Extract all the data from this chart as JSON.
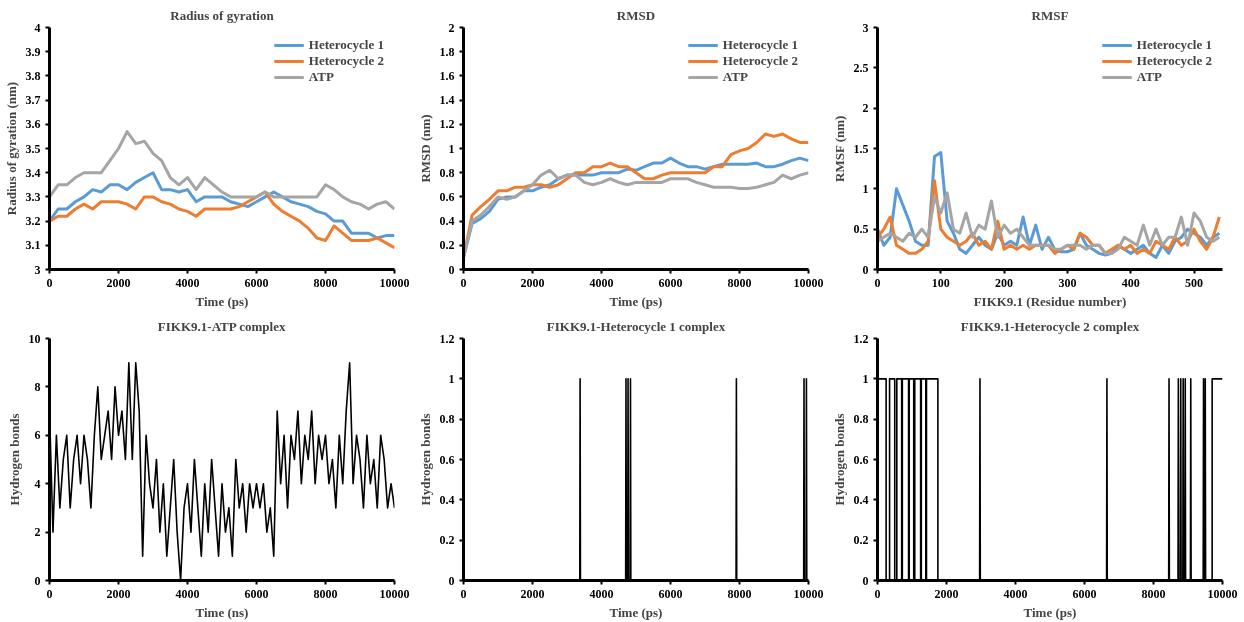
{
  "chart_data": [
    {
      "type": "line",
      "title": "Radius of gyration",
      "xlabel": "Time (ps)",
      "ylabel": "Radius of gyration (nm)",
      "legend": "top right",
      "xlim": [
        0,
        10000
      ],
      "ylim": [
        3,
        4
      ],
      "xticks": [
        0,
        2000,
        4000,
        6000,
        8000,
        10000
      ],
      "yticks": [
        3,
        3.1,
        3.2,
        3.3,
        3.4,
        3.5,
        3.6,
        3.7,
        3.8,
        3.9,
        4
      ],
      "x": [
        0,
        250,
        500,
        750,
        1000,
        1250,
        1500,
        1750,
        2000,
        2250,
        2500,
        2750,
        3000,
        3250,
        3500,
        3750,
        4000,
        4250,
        4500,
        4750,
        5000,
        5250,
        5500,
        5750,
        6000,
        6250,
        6500,
        6750,
        7000,
        7250,
        7500,
        7750,
        8000,
        8250,
        8500,
        8750,
        9000,
        9250,
        9500,
        9750,
        10000
      ],
      "series": [
        {
          "name": "Heterocycle 1",
          "color": "#5b9bd5",
          "values": [
            3.2,
            3.25,
            3.25,
            3.28,
            3.3,
            3.33,
            3.32,
            3.35,
            3.35,
            3.33,
            3.36,
            3.38,
            3.4,
            3.33,
            3.33,
            3.32,
            3.33,
            3.28,
            3.3,
            3.3,
            3.3,
            3.28,
            3.27,
            3.26,
            3.28,
            3.3,
            3.32,
            3.3,
            3.28,
            3.27,
            3.26,
            3.24,
            3.23,
            3.2,
            3.2,
            3.15,
            3.15,
            3.15,
            3.13,
            3.14,
            3.14
          ]
        },
        {
          "name": "Heterocycle 2",
          "color": "#ed7d31",
          "values": [
            3.2,
            3.22,
            3.22,
            3.25,
            3.27,
            3.25,
            3.28,
            3.28,
            3.28,
            3.27,
            3.25,
            3.3,
            3.3,
            3.28,
            3.27,
            3.25,
            3.24,
            3.22,
            3.25,
            3.25,
            3.25,
            3.25,
            3.26,
            3.28,
            3.3,
            3.32,
            3.27,
            3.24,
            3.22,
            3.2,
            3.17,
            3.13,
            3.12,
            3.18,
            3.15,
            3.12,
            3.12,
            3.12,
            3.13,
            3.11,
            3.09
          ]
        },
        {
          "name": "ATP",
          "color": "#a5a5a5",
          "values": [
            3.3,
            3.35,
            3.35,
            3.38,
            3.4,
            3.4,
            3.4,
            3.45,
            3.5,
            3.57,
            3.52,
            3.53,
            3.48,
            3.45,
            3.38,
            3.35,
            3.38,
            3.33,
            3.38,
            3.35,
            3.32,
            3.3,
            3.3,
            3.3,
            3.3,
            3.32,
            3.3,
            3.3,
            3.3,
            3.3,
            3.3,
            3.3,
            3.35,
            3.33,
            3.3,
            3.28,
            3.27,
            3.25,
            3.27,
            3.28,
            3.25
          ]
        }
      ]
    },
    {
      "type": "line",
      "title": "RMSD",
      "xlabel": "Time (ps)",
      "ylabel": "RMSD (nm)",
      "legend": "top right",
      "xlim": [
        0,
        10000
      ],
      "ylim": [
        0,
        2
      ],
      "xticks": [
        0,
        2000,
        4000,
        6000,
        8000,
        10000
      ],
      "yticks": [
        0,
        0.2,
        0.4,
        0.6,
        0.8,
        1,
        1.2,
        1.4,
        1.6,
        1.8,
        2
      ],
      "x": [
        0,
        250,
        500,
        750,
        1000,
        1250,
        1500,
        1750,
        2000,
        2250,
        2500,
        2750,
        3000,
        3250,
        3500,
        3750,
        4000,
        4250,
        4500,
        4750,
        5000,
        5250,
        5500,
        5750,
        6000,
        6250,
        6500,
        6750,
        7000,
        7250,
        7500,
        7750,
        8000,
        8250,
        8500,
        8750,
        9000,
        9250,
        9500,
        9750,
        10000
      ],
      "series": [
        {
          "name": "Heterocycle 1",
          "color": "#5b9bd5",
          "values": [
            0.1,
            0.38,
            0.42,
            0.48,
            0.58,
            0.6,
            0.6,
            0.65,
            0.65,
            0.68,
            0.7,
            0.75,
            0.78,
            0.78,
            0.78,
            0.78,
            0.8,
            0.8,
            0.8,
            0.83,
            0.82,
            0.85,
            0.88,
            0.88,
            0.92,
            0.88,
            0.85,
            0.85,
            0.83,
            0.85,
            0.87,
            0.87,
            0.87,
            0.87,
            0.88,
            0.85,
            0.85,
            0.87,
            0.9,
            0.92,
            0.9
          ]
        },
        {
          "name": "Heterocycle 2",
          "color": "#ed7d31",
          "values": [
            0.1,
            0.45,
            0.52,
            0.58,
            0.65,
            0.65,
            0.68,
            0.68,
            0.7,
            0.7,
            0.68,
            0.7,
            0.75,
            0.8,
            0.8,
            0.85,
            0.85,
            0.88,
            0.85,
            0.85,
            0.8,
            0.75,
            0.75,
            0.78,
            0.8,
            0.8,
            0.8,
            0.8,
            0.8,
            0.85,
            0.85,
            0.95,
            0.98,
            1.0,
            1.05,
            1.12,
            1.1,
            1.12,
            1.08,
            1.05,
            1.05
          ]
        },
        {
          "name": "ATP",
          "color": "#a5a5a5",
          "values": [
            0.1,
            0.4,
            0.45,
            0.52,
            0.6,
            0.58,
            0.6,
            0.65,
            0.7,
            0.78,
            0.82,
            0.75,
            0.78,
            0.78,
            0.72,
            0.7,
            0.72,
            0.75,
            0.72,
            0.7,
            0.72,
            0.72,
            0.72,
            0.72,
            0.75,
            0.75,
            0.75,
            0.72,
            0.7,
            0.68,
            0.68,
            0.68,
            0.67,
            0.67,
            0.68,
            0.7,
            0.72,
            0.78,
            0.75,
            0.78,
            0.8
          ]
        }
      ]
    },
    {
      "type": "line",
      "title": "RMSF",
      "xlabel": "FIKK9.1 (Residue number)",
      "ylabel": "RMSF (nm)",
      "legend": "top right",
      "xlim": [
        0,
        545
      ],
      "ylim": [
        0,
        3
      ],
      "xticks": [
        0,
        100,
        200,
        300,
        400,
        500
      ],
      "yticks": [
        0,
        0.5,
        1,
        1.5,
        2,
        2.5,
        3
      ],
      "x": [
        0,
        10,
        20,
        30,
        40,
        50,
        60,
        70,
        80,
        90,
        100,
        110,
        120,
        130,
        140,
        150,
        160,
        170,
        180,
        190,
        200,
        210,
        220,
        230,
        240,
        250,
        260,
        270,
        280,
        290,
        300,
        310,
        320,
        330,
        340,
        350,
        360,
        370,
        380,
        390,
        400,
        410,
        420,
        430,
        440,
        450,
        460,
        470,
        480,
        490,
        500,
        510,
        520,
        530,
        540
      ],
      "series": [
        {
          "name": "Heterocycle 1",
          "color": "#5b9bd5",
          "values": [
            0.5,
            0.3,
            0.4,
            1.0,
            0.8,
            0.6,
            0.35,
            0.3,
            0.3,
            1.4,
            1.45,
            0.6,
            0.45,
            0.25,
            0.2,
            0.3,
            0.4,
            0.3,
            0.25,
            0.45,
            0.3,
            0.35,
            0.3,
            0.65,
            0.3,
            0.55,
            0.25,
            0.4,
            0.25,
            0.22,
            0.22,
            0.25,
            0.45,
            0.3,
            0.25,
            0.2,
            0.18,
            0.2,
            0.3,
            0.25,
            0.2,
            0.25,
            0.3,
            0.2,
            0.15,
            0.3,
            0.2,
            0.35,
            0.4,
            0.5,
            0.45,
            0.4,
            0.3,
            0.4,
            0.45
          ]
        },
        {
          "name": "Heterocycle 2",
          "color": "#ed7d31",
          "values": [
            0.4,
            0.5,
            0.65,
            0.3,
            0.25,
            0.2,
            0.2,
            0.25,
            0.35,
            1.1,
            0.5,
            0.4,
            0.35,
            0.3,
            0.35,
            0.45,
            0.3,
            0.35,
            0.25,
            0.6,
            0.25,
            0.3,
            0.25,
            0.3,
            0.25,
            0.3,
            0.3,
            0.3,
            0.2,
            0.25,
            0.3,
            0.25,
            0.45,
            0.4,
            0.3,
            0.3,
            0.2,
            0.25,
            0.3,
            0.25,
            0.3,
            0.2,
            0.25,
            0.2,
            0.35,
            0.3,
            0.25,
            0.4,
            0.3,
            0.35,
            0.5,
            0.35,
            0.25,
            0.4,
            0.65
          ]
        },
        {
          "name": "ATP",
          "color": "#a5a5a5",
          "values": [
            0.35,
            0.4,
            0.45,
            0.4,
            0.35,
            0.45,
            0.4,
            0.5,
            0.4,
            0.9,
            0.7,
            0.95,
            0.5,
            0.45,
            0.7,
            0.4,
            0.55,
            0.5,
            0.85,
            0.4,
            0.55,
            0.45,
            0.5,
            0.4,
            0.3,
            0.3,
            0.3,
            0.3,
            0.25,
            0.25,
            0.3,
            0.3,
            0.3,
            0.25,
            0.3,
            0.3,
            0.2,
            0.2,
            0.25,
            0.4,
            0.35,
            0.3,
            0.55,
            0.3,
            0.5,
            0.3,
            0.4,
            0.4,
            0.65,
            0.3,
            0.7,
            0.6,
            0.4,
            0.35,
            0.4
          ]
        }
      ]
    },
    {
      "type": "line",
      "title": "FIKK9.1-ATP complex",
      "xlabel": "Time (ns)",
      "ylabel": "Hydrogen bonds",
      "xlim": [
        0,
        10000
      ],
      "ylim": [
        0,
        10
      ],
      "xticks": [
        0,
        2000,
        4000,
        6000,
        8000,
        10000
      ],
      "yticks": [
        0,
        2,
        4,
        6,
        8,
        10
      ],
      "x": [
        0,
        100,
        200,
        300,
        400,
        500,
        600,
        700,
        800,
        900,
        1000,
        1100,
        1200,
        1300,
        1400,
        1500,
        1600,
        1700,
        1800,
        1900,
        2000,
        2100,
        2200,
        2300,
        2400,
        2500,
        2600,
        2700,
        2800,
        2900,
        3000,
        3100,
        3200,
        3300,
        3400,
        3500,
        3600,
        3700,
        3800,
        3900,
        4000,
        4100,
        4200,
        4300,
        4400,
        4500,
        4600,
        4700,
        4800,
        4900,
        5000,
        5100,
        5200,
        5300,
        5400,
        5500,
        5600,
        5700,
        5800,
        5900,
        6000,
        6100,
        6200,
        6300,
        6400,
        6500,
        6600,
        6700,
        6800,
        6900,
        7000,
        7100,
        7200,
        7300,
        7400,
        7500,
        7600,
        7700,
        7800,
        7900,
        8000,
        8100,
        8200,
        8300,
        8400,
        8500,
        8600,
        8700,
        8800,
        8900,
        9000,
        9100,
        9200,
        9300,
        9400,
        9500,
        9600,
        9700,
        9800,
        9900,
        10000
      ],
      "series": [
        {
          "color": "#000000",
          "values": [
            7,
            2,
            6,
            3,
            5,
            6,
            3,
            5,
            6,
            4,
            6,
            5,
            3,
            6,
            8,
            5,
            6,
            7,
            5,
            8,
            6,
            7,
            5,
            9,
            5,
            9,
            7,
            1,
            6,
            4,
            3,
            5,
            2,
            4,
            1,
            3,
            5,
            2,
            0,
            3,
            4,
            2,
            5,
            3,
            1,
            4,
            2,
            5,
            3,
            1,
            4,
            2,
            3,
            1,
            5,
            3,
            4,
            2,
            4,
            3,
            4,
            3,
            4,
            2,
            3,
            1,
            7,
            4,
            6,
            3,
            6,
            5,
            7,
            4,
            6,
            5,
            7,
            4,
            6,
            5,
            6,
            4,
            5,
            3,
            6,
            4,
            7,
            9,
            4,
            6,
            5,
            3,
            6,
            4,
            5,
            3,
            6,
            5,
            3,
            4,
            3
          ]
        }
      ]
    },
    {
      "type": "line",
      "title": "FIKK9.1-Heterocycle 1 complex",
      "xlabel": "Time (ps)",
      "ylabel": "Hydrogen bonds",
      "xlim": [
        0,
        10000
      ],
      "ylim": [
        0,
        1.2
      ],
      "xticks": [
        0,
        2000,
        4000,
        6000,
        8000,
        10000
      ],
      "yticks": [
        0,
        0.2,
        0.4,
        0.6,
        0.8,
        1,
        1.2
      ],
      "series": [
        {
          "color": "#000000",
          "x": [
            0,
            3370,
            3380,
            3390,
            4700,
            4710,
            4720,
            4760,
            4770,
            4780,
            4830,
            4840,
            4850,
            7900,
            7910,
            7920,
            9860,
            9870,
            9880,
            9930,
            9940,
            9950,
            10000
          ],
          "values": [
            0,
            0,
            1,
            0,
            0,
            1,
            0,
            0,
            1,
            0,
            0,
            1,
            0,
            0,
            1,
            0,
            0,
            1,
            0,
            0,
            1,
            0,
            0
          ]
        }
      ]
    },
    {
      "type": "line",
      "title": "FIKK9.1-Heterocycle 2 complex",
      "xlabel": "Time (ps)",
      "ylabel": "Hydrogen bonds",
      "xlim": [
        0,
        10000
      ],
      "ylim": [
        0,
        1.2
      ],
      "xticks": [
        0,
        2000,
        4000,
        6000,
        8000,
        10000
      ],
      "yticks": [
        0,
        0.2,
        0.4,
        0.6,
        0.8,
        1,
        1.2
      ],
      "series": [
        {
          "color": "#000000",
          "x": [
            0,
            250,
            250,
            350,
            350,
            500,
            500,
            560,
            560,
            700,
            700,
            720,
            720,
            900,
            900,
            920,
            920,
            1050,
            1050,
            1080,
            1080,
            1250,
            1250,
            1270,
            1270,
            1400,
            1400,
            1420,
            1420,
            1750,
            1750,
            2960,
            2970,
            2980,
            6640,
            6650,
            6660,
            8440,
            8450,
            8460,
            8710,
            8720,
            8730,
            8780,
            8790,
            8800,
            8850,
            8860,
            8870,
            8910,
            8920,
            8930,
            9070,
            9080,
            9090,
            9440,
            9450,
            9460,
            9490,
            9500,
            9510,
            9700,
            9700,
            10000
          ],
          "values": [
            1,
            1,
            0,
            0,
            1,
            1,
            0,
            0,
            1,
            1,
            0,
            0,
            1,
            1,
            0,
            0,
            1,
            1,
            0,
            0,
            1,
            1,
            0,
            0,
            1,
            1,
            0,
            0,
            1,
            1,
            0,
            0,
            1,
            0,
            0,
            1,
            0,
            0,
            1,
            0,
            0,
            1,
            0,
            0,
            1,
            0,
            0,
            1,
            0,
            0,
            1,
            0,
            0,
            1,
            0,
            0,
            1,
            0,
            0,
            1,
            0,
            0,
            1,
            1
          ]
        }
      ]
    }
  ]
}
